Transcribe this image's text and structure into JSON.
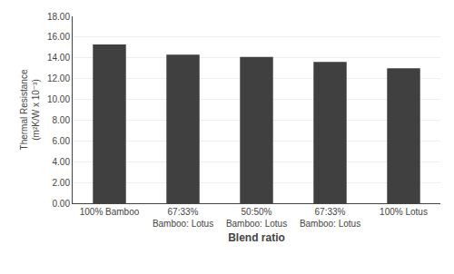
{
  "chart_data": {
    "type": "bar",
    "categories": [
      "100% Bamboo",
      "67:33%\nBamboo: Lotus",
      "50:50%\nBamboo: Lotus",
      "67:33%\nBamboo: Lotus",
      "100% Lotus"
    ],
    "values": [
      15.3,
      14.3,
      14.1,
      13.6,
      13.0
    ],
    "color": "#404040",
    "xlabel": "Blend ratio",
    "ylabel": "Thermal Resistance\n(m²K/W x 10⁻³)",
    "ylim": [
      0,
      18.0
    ],
    "yticks": [
      {
        "value": 0.0,
        "label": "0.00"
      },
      {
        "value": 2.0,
        "label": "2.00"
      },
      {
        "value": 4.0,
        "label": "4.00"
      },
      {
        "value": 6.0,
        "label": "6.00"
      },
      {
        "value": 8.0,
        "label": "8.00"
      },
      {
        "value": 10.0,
        "label": "10.00"
      },
      {
        "value": 12.0,
        "label": "12.00"
      },
      {
        "value": 14.0,
        "label": "14.00"
      },
      {
        "value": 16.0,
        "label": "16.00"
      },
      {
        "value": 18.0,
        "label": "18.00"
      }
    ],
    "grid": true
  }
}
